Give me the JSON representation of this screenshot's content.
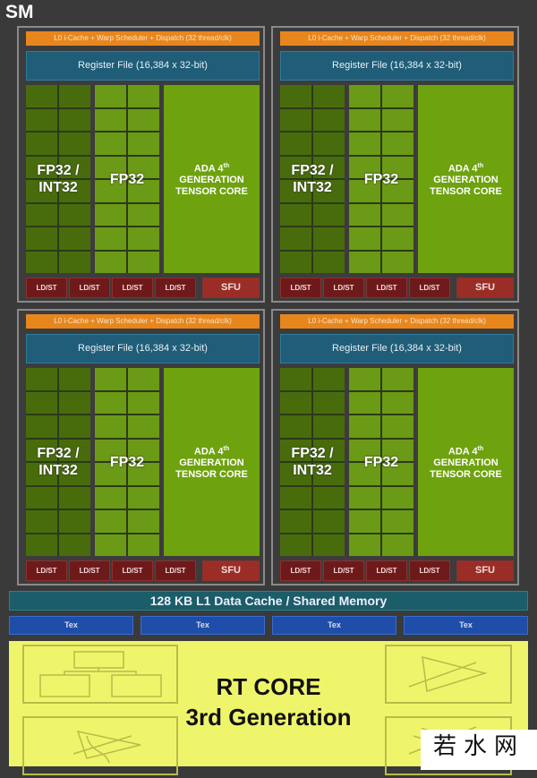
{
  "title": "SM",
  "partition": {
    "scheduler": "L0 i-Cache + Warp Scheduler + Dispatch (32 thread/clk)",
    "register_file": "Register File (16,384 x 32-bit)",
    "fp32_int32": "FP32 / INT32",
    "fp32": "FP32",
    "tensor_line1": "ADA 4",
    "tensor_sup": "th",
    "tensor_line2": "GENERATION",
    "tensor_line3": "TENSOR CORE",
    "ldst": "LD/ST",
    "sfu": "SFU"
  },
  "partition_count": 4,
  "l1_cache": "128 KB L1 Data Cache / Shared Memory",
  "tex_units": [
    "Tex",
    "Tex",
    "Tex",
    "Tex"
  ],
  "rt_core": {
    "line1": "RT CORE",
    "line2": "3rd Generation"
  },
  "watermark": "若水网",
  "colors": {
    "scheduler": "#e8861e",
    "register_file": "#1f5d78",
    "int_core": "#486c0c",
    "fp_core": "#6b9a16",
    "tensor": "#6ea20e",
    "ldst": "#6f1a1a",
    "l1": "#1b5d68",
    "tex": "#1f4ea8",
    "rt_core": "#eef56a"
  }
}
